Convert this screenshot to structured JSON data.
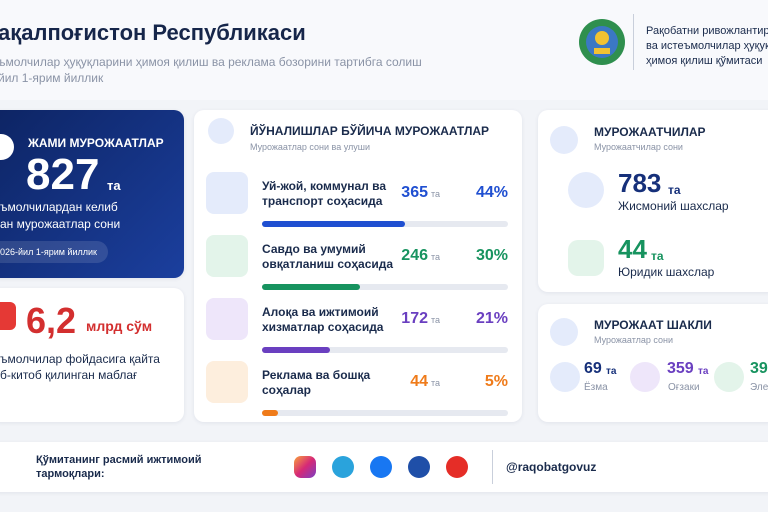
{
  "header": {
    "title": "ақалпоғистон Республикаси",
    "subtitle": [
      "ъмолчилар ҳуқуқларини ҳимоя қилиш ва реклама бозорини тартибга солиш",
      "йил 1-ярим йиллик"
    ],
    "org": [
      "Рақобатни ривожлантири",
      "ва истеъмолчилар ҳуқуқла",
      "ҳимоя қилиш қўмитаси"
    ]
  },
  "total": {
    "label": "ЖАМИ МУРОЖААТЛАР",
    "value": 827,
    "unit": "та",
    "caption": [
      "ъмолчилардан келиб",
      "ан мурожаатлар сони"
    ],
    "period": "026-йил 1-ярим йиллик"
  },
  "savings": {
    "value": "6,2",
    "unit": "млрд сўм",
    "caption": [
      "ъмолчилар фойдасига қайта",
      "б-китоб қилинган маблағ"
    ]
  },
  "directions": {
    "title": "ЙЎНАЛИШЛАР БЎЙИЧА МУРОЖААТЛАР",
    "subtitle": "Мурожаатлар сони ва улуши",
    "rows": [
      {
        "label": [
          "Уй-жой, коммунал ва",
          "транспорт соҳасида"
        ],
        "count": 365,
        "unit": "та",
        "percent": 44,
        "percent_label": "44%",
        "color": "#1f4fd1"
      },
      {
        "label": [
          "Савдо ва умумий",
          "овқатланиш соҳасида"
        ],
        "count": 246,
        "unit": "та",
        "percent": 30,
        "percent_label": "30%",
        "color": "#17935f"
      },
      {
        "label": [
          "Алоқа ва ижтимоий",
          "хизматлар соҳасида"
        ],
        "count": 172,
        "unit": "та",
        "percent": 21,
        "percent_label": "21%",
        "color": "#6a3fc0"
      },
      {
        "label": [
          "Реклама ва бошқа",
          "соҳалар"
        ],
        "count": 44,
        "unit": "та",
        "percent": 5,
        "percent_label": "5%",
        "color": "#ef7b1a"
      }
    ]
  },
  "applicants": {
    "title": "МУРОЖААТЧИЛАР",
    "subtitle": "Мурожаатчилар сони",
    "items": [
      {
        "value": 783,
        "unit": "та",
        "label": "Жисмоний шахслар"
      },
      {
        "value": 44,
        "unit": "та",
        "label": "Юридик шахслар"
      }
    ]
  },
  "forms": {
    "title": "МУРОЖААТ ШАКЛИ",
    "subtitle": "Мурожаатлар сони",
    "items": [
      {
        "value": 69,
        "unit": "та",
        "label": "Ёзма"
      },
      {
        "value": 359,
        "unit": "та",
        "label": "Оғзаки"
      },
      {
        "value": 39,
        "label": "Эле"
      }
    ]
  },
  "footer": {
    "label": [
      "Қўмитанинг расмий ижтимоий",
      "тармоқлари:"
    ],
    "handle": "@raqobatgovuz"
  }
}
